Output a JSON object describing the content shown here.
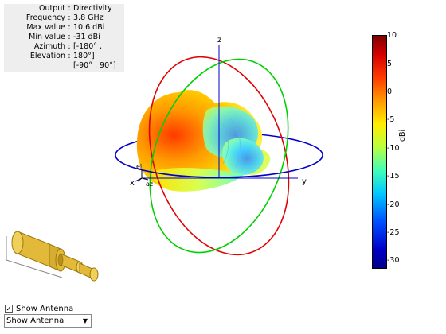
{
  "info": {
    "output_label": "Output",
    "output_value": "Directivity",
    "frequency_label": "Frequency",
    "frequency_value": "3.8 GHz",
    "max_label": "Max value",
    "max_value": "10.6 dBi",
    "min_label": "Min value",
    "min_value": "-31 dBi",
    "azimuth_label": "Azimuth",
    "azimuth_value": "[-180° ,",
    "elevation_label": "Elevation",
    "elevation_value": "180°]",
    "range_value": "[-90° , 90°]",
    "separator": ":"
  },
  "axes": {
    "x": "x",
    "y": "y",
    "z": "z",
    "az_marker": "az",
    "el_marker": "el"
  },
  "colorbar": {
    "ticks": [
      "10",
      "5",
      "0",
      "-5",
      "-10",
      "-15",
      "-20",
      "-25",
      "-30"
    ],
    "unit": "dBi"
  },
  "controls": {
    "show_antenna_checkbox_label": "Show Antenna",
    "show_antenna_checked": true,
    "dropdown_value": "Show Antenna"
  },
  "colors": {
    "great_circle_xy": "#0000c8",
    "great_circle_xz": "#e00000",
    "great_circle_yz": "#00d000",
    "antenna_body": "#e3b93a"
  }
}
